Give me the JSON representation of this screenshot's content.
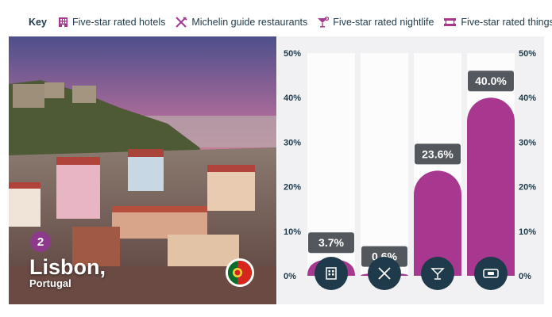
{
  "key": {
    "title": "Key",
    "items": [
      {
        "label": "Five-star rated hotels",
        "icon": "hotel-icon"
      },
      {
        "label": "Michelin guide restaurants",
        "icon": "fork-knife-icon"
      },
      {
        "label": "Five-star rated nightlife",
        "icon": "cocktail-icon"
      },
      {
        "label": "Five-star rated things to do",
        "icon": "ticket-icon"
      }
    ]
  },
  "city": {
    "rank": "2",
    "name": "Lisbon,",
    "country": "Portugal",
    "flag_icon": "portugal-flag-icon"
  },
  "colors": {
    "accent": "#a8388f",
    "icon_circle": "#1f3a4a",
    "label_box": "#53585e",
    "text": "#1f3a4a"
  },
  "chart_data": {
    "type": "bar",
    "categories": [
      "Five-star rated hotels",
      "Michelin guide restaurants",
      "Five-star rated nightlife",
      "Five-star rated things to do"
    ],
    "values": [
      3.7,
      0.6,
      23.6,
      40.0
    ],
    "value_labels": [
      "3.7%",
      "0.6%",
      "23.6%",
      "40.0%"
    ],
    "ylim": [
      0,
      50
    ],
    "y_ticks": [
      "0%",
      "10%",
      "20%",
      "30%",
      "40%",
      "50%"
    ],
    "grid": false,
    "title": "",
    "xlabel": "",
    "ylabel": ""
  }
}
